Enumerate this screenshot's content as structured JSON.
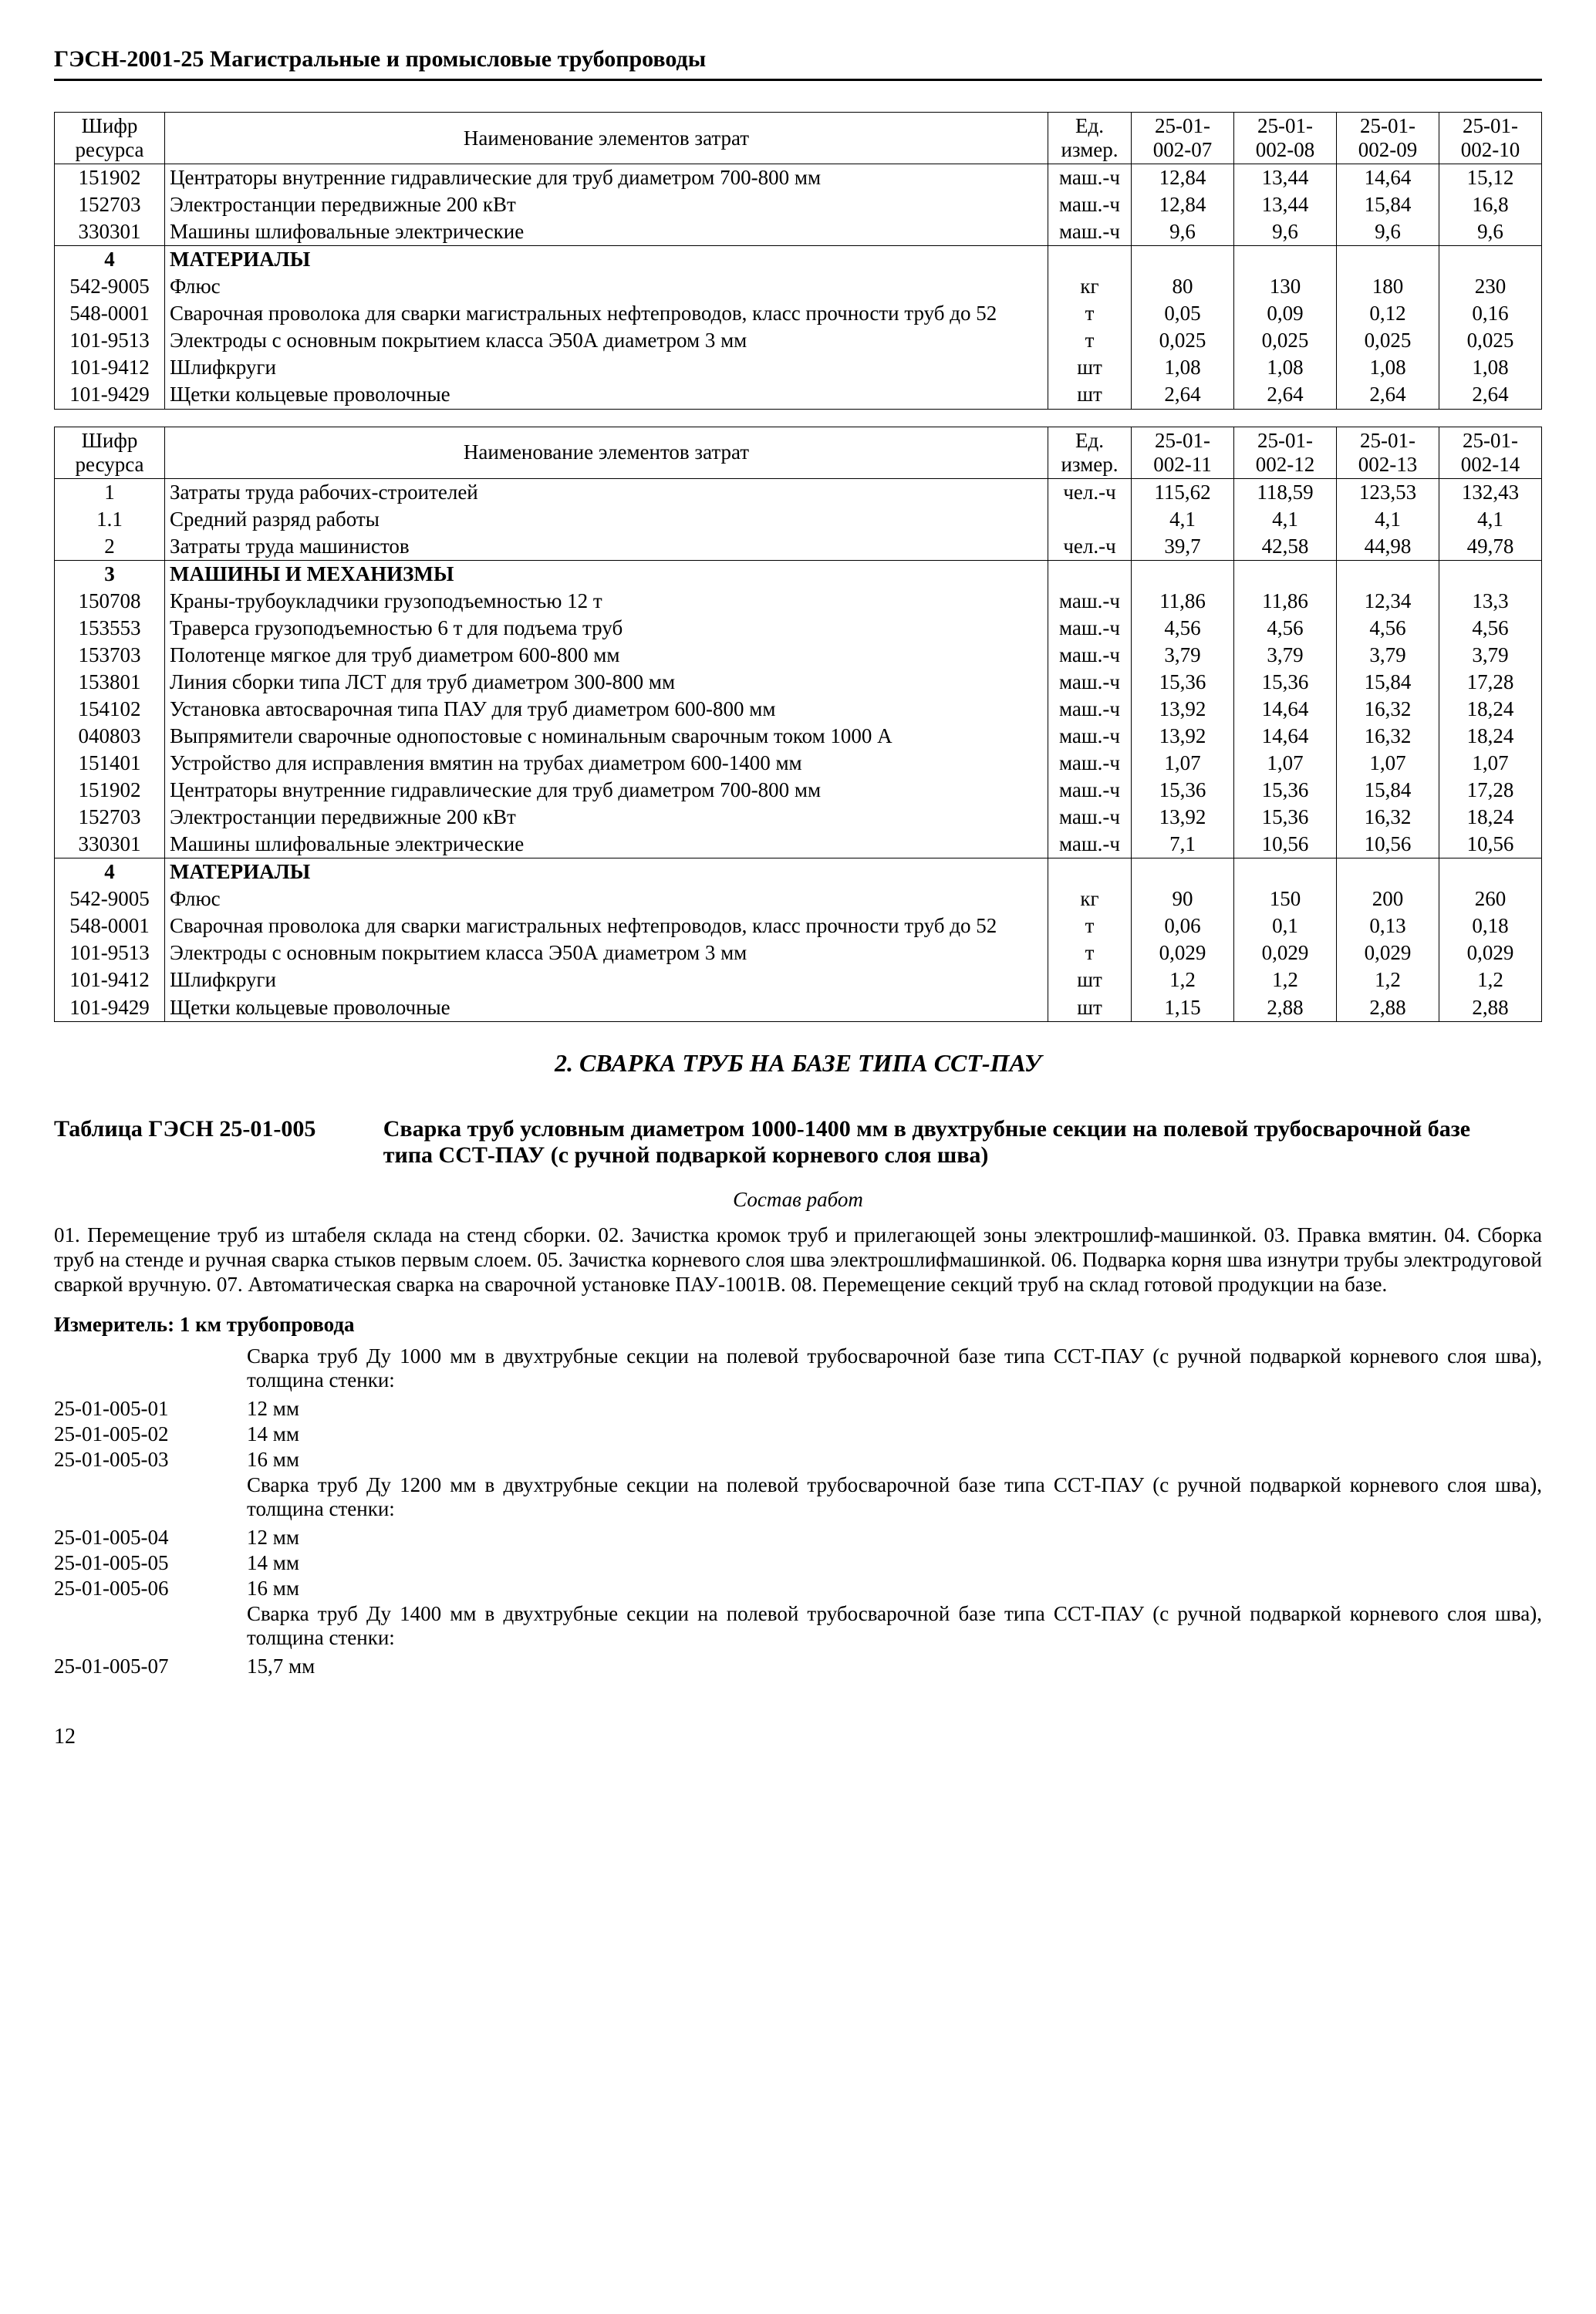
{
  "header": "ГЭСН-2001-25 Магистральные и промысловые трубопроводы",
  "page_number": "12",
  "table1": {
    "head": {
      "c1a": "Шифр",
      "c1b": "ресурса",
      "c2": "Наименование элементов затрат",
      "c3a": "Ед.",
      "c3b": "измер.",
      "v": [
        "25-01-002-07",
        "25-01-002-08",
        "25-01-002-09",
        "25-01-002-10"
      ]
    },
    "rows": [
      {
        "code": "151902",
        "name": "Центраторы внутренние гидравлические для труб диаметром 700-800 мм",
        "unit": "маш.-ч",
        "v": [
          "12,84",
          "13,44",
          "14,64",
          "15,12"
        ]
      },
      {
        "code": "152703",
        "name": "Электростанции передвижные 200 кВт",
        "unit": "маш.-ч",
        "v": [
          "12,84",
          "13,44",
          "15,84",
          "16,8"
        ]
      },
      {
        "code": "330301",
        "name": "Машины шлифовальные электрические",
        "unit": "маш.-ч",
        "v": [
          "9,6",
          "9,6",
          "9,6",
          "9,6"
        ]
      },
      {
        "sep": true,
        "code": "4",
        "name": "МАТЕРИАЛЫ",
        "bold": true
      },
      {
        "code": "542-9005",
        "name": "Флюс",
        "unit": "кг",
        "v": [
          "80",
          "130",
          "180",
          "230"
        ]
      },
      {
        "code": "548-0001",
        "name": "Сварочная проволока для сварки магистральных нефтепроводов, класс прочности труб до 52",
        "unit": "т",
        "v": [
          "0,05",
          "0,09",
          "0,12",
          "0,16"
        ]
      },
      {
        "code": "101-9513",
        "name": "Электроды с основным покрытием класса Э50А диаметром 3 мм",
        "unit": "т",
        "v": [
          "0,025",
          "0,025",
          "0,025",
          "0,025"
        ]
      },
      {
        "code": "101-9412",
        "name": "Шлифкруги",
        "unit": "шт",
        "v": [
          "1,08",
          "1,08",
          "1,08",
          "1,08"
        ]
      },
      {
        "code": "101-9429",
        "name": "Щетки кольцевые проволочные",
        "unit": "шт",
        "v": [
          "2,64",
          "2,64",
          "2,64",
          "2,64"
        ]
      }
    ]
  },
  "table2": {
    "head": {
      "c1a": "Шифр",
      "c1b": "ресурса",
      "c2": "Наименование элементов затрат",
      "c3a": "Ед.",
      "c3b": "измер.",
      "v": [
        "25-01-002-11",
        "25-01-002-12",
        "25-01-002-13",
        "25-01-002-14"
      ]
    },
    "rows": [
      {
        "sep": true,
        "code": "1",
        "name": "Затраты труда рабочих-строителей",
        "unit": "чел.-ч",
        "v": [
          "115,62",
          "118,59",
          "123,53",
          "132,43"
        ]
      },
      {
        "code": "1.1",
        "name": "Средний разряд работы",
        "unit": "",
        "v": [
          "4,1",
          "4,1",
          "4,1",
          "4,1"
        ]
      },
      {
        "code": "2",
        "name": "Затраты труда машинистов",
        "unit": "чел.-ч",
        "v": [
          "39,7",
          "42,58",
          "44,98",
          "49,78"
        ]
      },
      {
        "sep": true,
        "code": "3",
        "name": "МАШИНЫ И МЕХАНИЗМЫ",
        "bold": true
      },
      {
        "code": "150708",
        "name": "Краны-трубоукладчики грузоподъемностью 12 т",
        "unit": "маш.-ч",
        "v": [
          "11,86",
          "11,86",
          "12,34",
          "13,3"
        ]
      },
      {
        "code": "153553",
        "name": "Траверса грузоподъемностью 6 т для подъема труб",
        "unit": "маш.-ч",
        "v": [
          "4,56",
          "4,56",
          "4,56",
          "4,56"
        ]
      },
      {
        "code": "153703",
        "name": "Полотенце мягкое для труб диаметром 600-800 мм",
        "unit": "маш.-ч",
        "v": [
          "3,79",
          "3,79",
          "3,79",
          "3,79"
        ]
      },
      {
        "code": "153801",
        "name": "Линия сборки типа ЛСТ для труб диаметром 300-800 мм",
        "unit": "маш.-ч",
        "v": [
          "15,36",
          "15,36",
          "15,84",
          "17,28"
        ]
      },
      {
        "code": "154102",
        "name": "Установка автосварочная типа ПАУ для труб диаметром 600-800 мм",
        "unit": "маш.-ч",
        "v": [
          "13,92",
          "14,64",
          "16,32",
          "18,24"
        ]
      },
      {
        "code": "040803",
        "name": "Выпрямители сварочные однопостовые с номинальным сварочным током 1000 А",
        "unit": "маш.-ч",
        "v": [
          "13,92",
          "14,64",
          "16,32",
          "18,24"
        ]
      },
      {
        "code": "151401",
        "name": "Устройство для исправления вмятин на трубах диаметром 600-1400 мм",
        "unit": "маш.-ч",
        "v": [
          "1,07",
          "1,07",
          "1,07",
          "1,07"
        ]
      },
      {
        "code": "151902",
        "name": "Центраторы внутренние гидравлические для труб диаметром 700-800 мм",
        "unit": "маш.-ч",
        "v": [
          "15,36",
          "15,36",
          "15,84",
          "17,28"
        ]
      },
      {
        "code": "152703",
        "name": "Электростанции передвижные 200 кВт",
        "unit": "маш.-ч",
        "v": [
          "13,92",
          "15,36",
          "16,32",
          "18,24"
        ]
      },
      {
        "code": "330301",
        "name": "Машины шлифовальные электрические",
        "unit": "маш.-ч",
        "v": [
          "7,1",
          "10,56",
          "10,56",
          "10,56"
        ]
      },
      {
        "sep": true,
        "code": "4",
        "name": "МАТЕРИАЛЫ",
        "bold": true
      },
      {
        "code": "542-9005",
        "name": "Флюс",
        "unit": "кг",
        "v": [
          "90",
          "150",
          "200",
          "260"
        ]
      },
      {
        "code": "548-0001",
        "name": "Сварочная проволока для сварки магистральных нефтепроводов, класс прочности труб до 52",
        "unit": "т",
        "v": [
          "0,06",
          "0,1",
          "0,13",
          "0,18"
        ]
      },
      {
        "code": "101-9513",
        "name": "Электроды с основным покрытием класса Э50А диаметром 3 мм",
        "unit": "т",
        "v": [
          "0,029",
          "0,029",
          "0,029",
          "0,029"
        ]
      },
      {
        "code": "101-9412",
        "name": "Шлифкруги",
        "unit": "шт",
        "v": [
          "1,2",
          "1,2",
          "1,2",
          "1,2"
        ]
      },
      {
        "code": "101-9429",
        "name": "Щетки кольцевые проволочные",
        "unit": "шт",
        "v": [
          "1,15",
          "2,88",
          "2,88",
          "2,88"
        ]
      }
    ]
  },
  "mid_heading": "2. СВАРКА ТРУБ НА БАЗЕ ТИПА ССТ-ПАУ",
  "table_title": {
    "left": "Таблица ГЭСН 25-01-005",
    "right": "Сварка труб условным диаметром 1000-1400 мм в двухтрубные секции на полевой трубосварочной базе типа ССТ-ПАУ (с ручной подваркой корневого слоя шва)"
  },
  "sost": "Состав работ",
  "paragraph": "01. Перемещение труб из штабеля склада на стенд сборки. 02. Зачистка кромок труб и прилегающей зоны электрошлиф-машинкой. 03. Правка вмятин. 04. Сборка труб на стенде и ручная сварка стыков первым слоем. 05. Зачистка корневого слоя шва электрошлифмашинкой. 06. Подварка корня шва изнутри трубы электродуговой сваркой вручную. 07. Автоматическая сварка на сварочной установке ПАУ-1001В. 08. Перемещение секций труб на склад готовой продукции на базе.",
  "measure": "Измеритель: 1 км трубопровода",
  "spec": {
    "g1": "Сварка труб Ду 1000 мм в двухтрубные секции на полевой трубосварочной базе типа ССТ-ПАУ (с ручной подваркой корневого слоя шва), толщина стенки:",
    "r1": {
      "code": "25-01-005-01",
      "val": "12 мм"
    },
    "r2": {
      "code": "25-01-005-02",
      "val": "14 мм"
    },
    "r3": {
      "code": "25-01-005-03",
      "val": "16 мм"
    },
    "g2": "Сварка труб Ду 1200 мм в двухтрубные секции на полевой трубосварочной базе типа ССТ-ПАУ (с ручной подваркой корневого слоя шва), толщина стенки:",
    "r4": {
      "code": "25-01-005-04",
      "val": "12 мм"
    },
    "r5": {
      "code": "25-01-005-05",
      "val": "14 мм"
    },
    "r6": {
      "code": "25-01-005-06",
      "val": "16 мм"
    },
    "g3": "Сварка труб Ду 1400 мм в двухтрубные секции на полевой трубосварочной базе типа ССТ-ПАУ (с ручной подваркой корневого слоя шва), толщина стенки:",
    "r7": {
      "code": "25-01-005-07",
      "val": "15,7 мм"
    }
  }
}
